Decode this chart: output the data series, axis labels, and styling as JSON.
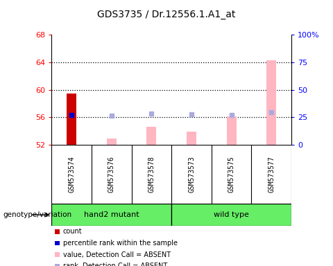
{
  "title": "GDS3735 / Dr.12556.1.A1_at",
  "samples": [
    "GSM573574",
    "GSM573576",
    "GSM573578",
    "GSM573573",
    "GSM573575",
    "GSM573577"
  ],
  "ylim_left": [
    52,
    68
  ],
  "ylim_right": [
    0,
    100
  ],
  "yticks_left": [
    52,
    56,
    60,
    64,
    68
  ],
  "yticks_right": [
    0,
    25,
    50,
    75,
    100
  ],
  "ytick_labels_right": [
    "0",
    "25",
    "50",
    "75",
    "100%"
  ],
  "count_bar": {
    "x": 0,
    "value": 59.5,
    "color": "#CC0000"
  },
  "rank_dot": {
    "x": 0,
    "value": 56.3,
    "color": "#0000CC"
  },
  "absent_value_bars": [
    {
      "x": 1,
      "value": 52.9
    },
    {
      "x": 2,
      "value": 54.6
    },
    {
      "x": 3,
      "value": 53.9
    },
    {
      "x": 4,
      "value": 56.1
    },
    {
      "x": 5,
      "value": 64.3
    }
  ],
  "absent_value_color": "#FFB6C1",
  "absent_rank_dots": [
    {
      "x": 1,
      "value": 56.2
    },
    {
      "x": 2,
      "value": 56.5
    },
    {
      "x": 3,
      "value": 56.45
    },
    {
      "x": 4,
      "value": 56.35
    },
    {
      "x": 5,
      "value": 56.7
    }
  ],
  "absent_rank_color": "#AAAADD",
  "bar_width": 0.35,
  "grid_dotted_at": [
    56,
    60,
    64
  ],
  "x_area_color": "#CCCCCC",
  "green_color": "#66EE66",
  "group1_label": "hand2 mutant",
  "group2_label": "wild type",
  "legend_items": [
    {
      "label": "count",
      "color": "#CC0000"
    },
    {
      "label": "percentile rank within the sample",
      "color": "#0000CC"
    },
    {
      "label": "value, Detection Call = ABSENT",
      "color": "#FFB6C1"
    },
    {
      "label": "rank, Detection Call = ABSENT",
      "color": "#AAAADD"
    }
  ]
}
